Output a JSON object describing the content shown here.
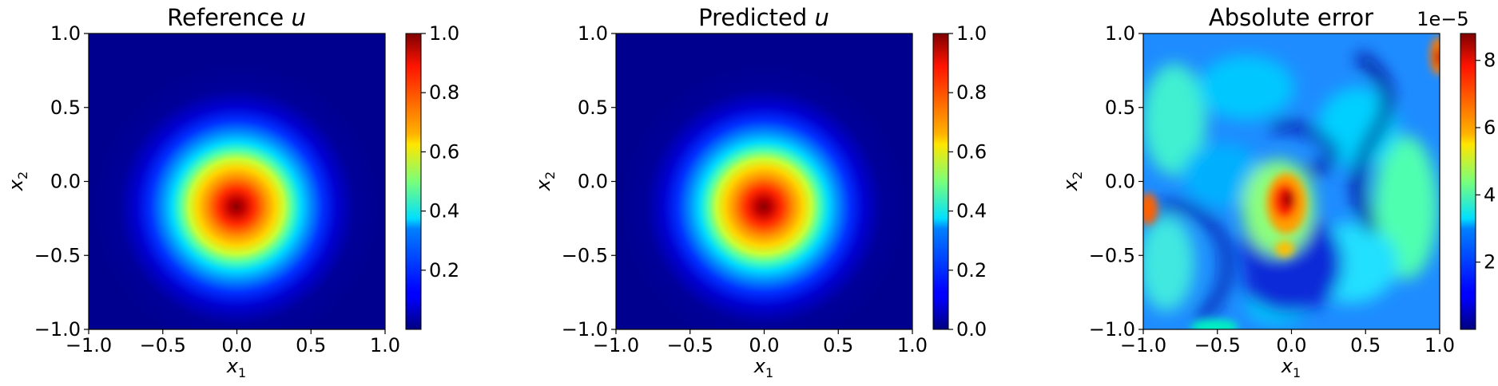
{
  "chart_data": [
    {
      "type": "heatmap",
      "title_text": "Reference ",
      "title_var": "u",
      "xlabel_base": "x",
      "xlabel_sub": "1",
      "ylabel_base": "x",
      "ylabel_sub": "2",
      "xlim": [
        -1.0,
        1.0
      ],
      "ylim": [
        -1.0,
        1.0
      ],
      "x_ticks": [
        -1.0,
        -0.5,
        0.0,
        0.5,
        1.0
      ],
      "x_tick_labels": [
        "−1.0",
        "−0.5",
        "0.0",
        "0.5",
        "1.0"
      ],
      "y_ticks": [
        -1.0,
        -0.5,
        0.0,
        0.5,
        1.0
      ],
      "y_tick_labels": [
        "−1.0",
        "−0.5",
        "0.0",
        "0.5",
        "1.0"
      ],
      "colormap": "jet",
      "field": "gaussian bump centered at (0,0), peak 1.0",
      "clim": [
        0.0,
        1.0
      ],
      "colorbar_ticks": [
        0.2,
        0.4,
        0.6,
        0.8,
        1.0
      ],
      "colorbar_tick_labels": [
        "0.2",
        "0.4",
        "0.6",
        "0.8",
        "1.0"
      ],
      "colorbar_offset": ""
    },
    {
      "type": "heatmap",
      "title_text": "Predicted ",
      "title_var": "u",
      "xlabel_base": "x",
      "xlabel_sub": "1",
      "ylabel_base": "x",
      "ylabel_sub": "2",
      "xlim": [
        -1.0,
        1.0
      ],
      "ylim": [
        -1.0,
        1.0
      ],
      "x_ticks": [
        -1.0,
        -0.5,
        0.0,
        0.5,
        1.0
      ],
      "x_tick_labels": [
        "−1.0",
        "−0.5",
        "0.0",
        "0.5",
        "1.0"
      ],
      "y_ticks": [
        -1.0,
        -0.5,
        0.0,
        0.5,
        1.0
      ],
      "y_tick_labels": [
        "−1.0",
        "−0.5",
        "0.0",
        "0.5",
        "1.0"
      ],
      "colormap": "jet",
      "field": "gaussian bump centered at (0,0), peak 1.0",
      "clim": [
        0.0,
        1.0
      ],
      "colorbar_ticks": [
        0.0,
        0.2,
        0.4,
        0.6,
        0.8,
        1.0
      ],
      "colorbar_tick_labels": [
        "0.0",
        "0.2",
        "0.4",
        "0.6",
        "0.8",
        "1.0"
      ],
      "colorbar_offset": ""
    },
    {
      "type": "heatmap",
      "title_text": "Absolute error",
      "title_var": "",
      "xlabel_base": "x",
      "xlabel_sub": "1",
      "ylabel_base": "x",
      "ylabel_sub": "2",
      "xlim": [
        -1.0,
        1.0
      ],
      "ylim": [
        -1.0,
        1.0
      ],
      "x_ticks": [
        -1.0,
        -0.5,
        0.0,
        0.5,
        1.0
      ],
      "x_tick_labels": [
        "−1.0",
        "−0.5",
        "0.0",
        "0.5",
        "1.0"
      ],
      "y_ticks": [
        -1.0,
        -0.5,
        0.0,
        0.5,
        1.0
      ],
      "y_tick_labels": [
        "−1.0",
        "−0.5",
        "0.0",
        "0.5",
        "1.0"
      ],
      "colormap": "jet",
      "field": "irregular error pattern, max near (-0.05,-0.15)",
      "clim": [
        0.0,
        8.8
      ],
      "colorbar_ticks": [
        2,
        4,
        6,
        8
      ],
      "colorbar_tick_labels": [
        "2",
        "4",
        "6",
        "8"
      ],
      "colorbar_offset": "1e−5"
    }
  ]
}
